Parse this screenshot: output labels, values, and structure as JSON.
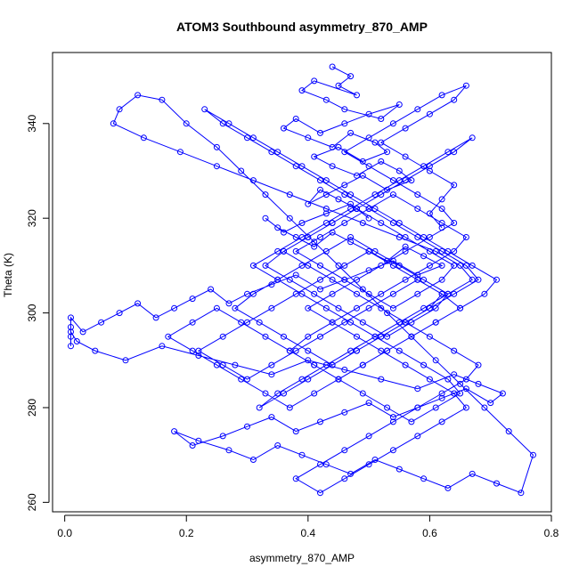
{
  "chart_data": {
    "type": "line",
    "title": "ATOM3 Southbound asymmetry_870_AMP",
    "xlabel": "asymmetry_870_AMP",
    "ylabel": "Theta (K)",
    "xlim": [
      -0.02,
      0.8
    ],
    "ylim": [
      258,
      355
    ],
    "x_ticks": [
      0.0,
      0.2,
      0.4,
      0.6,
      0.8
    ],
    "x_tick_labels": [
      "0.0",
      "0.2",
      "0.4",
      "0.6",
      "0.8"
    ],
    "y_ticks": [
      260,
      280,
      300,
      320,
      340
    ],
    "y_tick_labels": [
      "260",
      "280",
      "300",
      "320",
      "340"
    ],
    "grid": false,
    "legend": "none",
    "series": [
      {
        "style": "points and lines (open circles)",
        "color": "#0000ff",
        "x": [
          0.44,
          0.47,
          0.45,
          0.48,
          0.41,
          0.39,
          0.43,
          0.46,
          0.52,
          0.55,
          0.5,
          0.46,
          0.42,
          0.38,
          0.36,
          0.4,
          0.44,
          0.47,
          0.51,
          0.53,
          0.49,
          0.45,
          0.41,
          0.44,
          0.48,
          0.52,
          0.55,
          0.57,
          0.53,
          0.49,
          0.46,
          0.43,
          0.4,
          0.42,
          0.45,
          0.48,
          0.5,
          0.47,
          0.43,
          0.39,
          0.36,
          0.33,
          0.35,
          0.38,
          0.41,
          0.44,
          0.47,
          0.5,
          0.53,
          0.56,
          0.59,
          0.62,
          0.58,
          0.54,
          0.5,
          0.46,
          0.42,
          0.38,
          0.34,
          0.3,
          0.27,
          0.24,
          0.21,
          0.18,
          0.15,
          0.12,
          0.09,
          0.06,
          0.03,
          0.01,
          0.01,
          0.01,
          0.01,
          0.01,
          0.02,
          0.05,
          0.1,
          0.16,
          0.22,
          0.28,
          0.34,
          0.4,
          0.46,
          0.52,
          0.58,
          0.64,
          0.68,
          0.72,
          0.7,
          0.66,
          0.62,
          0.58,
          0.54,
          0.5,
          0.46,
          0.42,
          0.38,
          0.34,
          0.3,
          0.26,
          0.21,
          0.18,
          0.22,
          0.27,
          0.31,
          0.35,
          0.39,
          0.43,
          0.47,
          0.51,
          0.55,
          0.59,
          0.63,
          0.67,
          0.71,
          0.75,
          0.77,
          0.73,
          0.69,
          0.65,
          0.61,
          0.57,
          0.53,
          0.49,
          0.45,
          0.41,
          0.37,
          0.33,
          0.29,
          0.25,
          0.2,
          0.16,
          0.12,
          0.09,
          0.08,
          0.13,
          0.19,
          0.25,
          0.31,
          0.37,
          0.43,
          0.49,
          0.55,
          0.61,
          0.65,
          0.67,
          0.63,
          0.59,
          0.55,
          0.51,
          0.47,
          0.43,
          0.39,
          0.35,
          0.32,
          0.36,
          0.4,
          0.44,
          0.48,
          0.52,
          0.56,
          0.6,
          0.64,
          0.68,
          0.66,
          0.62,
          0.58,
          0.54,
          0.5,
          0.46,
          0.42,
          0.38,
          0.34,
          0.3,
          0.26,
          0.23,
          0.27,
          0.31,
          0.35,
          0.39,
          0.43,
          0.47,
          0.51,
          0.55,
          0.59,
          0.63,
          0.67,
          0.71,
          0.69,
          0.65,
          0.61,
          0.57,
          0.53,
          0.49,
          0.45,
          0.41,
          0.37,
          0.4,
          0.44,
          0.48,
          0.52,
          0.56,
          0.6,
          0.64,
          0.66,
          0.62,
          0.58,
          0.54,
          0.5,
          0.46,
          0.42,
          0.38,
          0.42,
          0.46,
          0.5,
          0.54,
          0.58,
          0.62,
          0.64,
          0.6,
          0.56,
          0.52,
          0.48,
          0.44,
          0.4,
          0.36,
          0.33,
          0.37,
          0.41,
          0.45,
          0.49,
          0.53,
          0.57,
          0.61,
          0.63,
          0.59,
          0.55,
          0.51,
          0.47,
          0.43,
          0.39,
          0.35,
          0.31,
          0.28,
          0.32,
          0.36,
          0.4,
          0.44,
          0.48,
          0.52,
          0.56,
          0.6,
          0.62,
          0.58,
          0.54,
          0.5,
          0.46,
          0.42,
          0.38,
          0.34,
          0.3,
          0.26,
          0.22,
          0.26,
          0.3,
          0.34,
          0.38,
          0.42,
          0.46,
          0.5,
          0.54,
          0.58,
          0.62,
          0.65,
          0.61,
          0.57,
          0.53,
          0.49,
          0.45,
          0.41,
          0.37,
          0.33,
          0.29,
          0.25,
          0.21,
          0.17,
          0.21,
          0.25,
          0.29,
          0.33,
          0.37,
          0.41,
          0.45,
          0.49,
          0.53,
          0.57,
          0.61,
          0.65,
          0.63,
          0.59,
          0.55,
          0.51,
          0.47,
          0.43,
          0.39,
          0.35,
          0.31,
          0.35,
          0.39,
          0.43,
          0.47,
          0.51,
          0.55,
          0.59,
          0.63,
          0.67,
          0.64,
          0.6,
          0.56,
          0.52,
          0.48,
          0.44,
          0.4,
          0.36,
          0.4,
          0.44,
          0.48,
          0.52,
          0.56,
          0.6,
          0.64,
          0.68,
          0.66,
          0.62,
          0.58,
          0.54,
          0.5,
          0.46,
          0.42,
          0.38,
          0.42,
          0.46,
          0.5,
          0.54,
          0.58,
          0.62,
          0.66,
          0.64,
          0.6,
          0.56,
          0.52,
          0.48,
          0.44,
          0.4,
          0.44,
          0.48,
          0.52,
          0.56,
          0.6,
          0.64,
          0.62,
          0.58,
          0.54,
          0.5,
          0.46,
          0.5,
          0.54,
          0.58,
          0.62,
          0.66,
          0.64,
          0.6,
          0.56,
          0.52,
          0.56,
          0.6,
          0.64,
          0.62,
          0.6,
          0.62
        ],
        "y": [
          352,
          350,
          348,
          346,
          349,
          347,
          345,
          343,
          341,
          344,
          342,
          340,
          338,
          341,
          339,
          337,
          335,
          338,
          336,
          334,
          332,
          335,
          333,
          331,
          329,
          332,
          330,
          328,
          326,
          329,
          327,
          325,
          323,
          326,
          324,
          322,
          320,
          323,
          321,
          319,
          317,
          320,
          318,
          316,
          314,
          317,
          315,
          313,
          311,
          314,
          312,
          310,
          308,
          311,
          309,
          307,
          305,
          308,
          306,
          304,
          302,
          305,
          303,
          301,
          299,
          302,
          300,
          298,
          296,
          299,
          297,
          295,
          293,
          296,
          294,
          292,
          290,
          293,
          291,
          289,
          287,
          290,
          288,
          286,
          284,
          287,
          285,
          283,
          281,
          284,
          282,
          280,
          278,
          281,
          279,
          277,
          275,
          278,
          276,
          274,
          272,
          275,
          273,
          271,
          269,
          272,
          270,
          268,
          266,
          269,
          267,
          265,
          263,
          266,
          264,
          262,
          270,
          275,
          280,
          285,
          290,
          295,
          300,
          305,
          310,
          315,
          320,
          325,
          330,
          335,
          340,
          345,
          346,
          343,
          340,
          337,
          334,
          331,
          328,
          325,
          322,
          319,
          316,
          313,
          310,
          307,
          304,
          301,
          298,
          295,
          292,
          289,
          286,
          283,
          280,
          283,
          286,
          289,
          292,
          295,
          298,
          301,
          304,
          307,
          310,
          313,
          316,
          319,
          322,
          325,
          328,
          331,
          334,
          337,
          340,
          343,
          340,
          337,
          334,
          331,
          328,
          325,
          322,
          319,
          316,
          313,
          310,
          307,
          304,
          301,
          298,
          295,
          292,
          289,
          286,
          289,
          292,
          295,
          298,
          301,
          304,
          307,
          310,
          313,
          316,
          319,
          322,
          325,
          322,
          319,
          316,
          313,
          310,
          307,
          304,
          301,
          304,
          307,
          310,
          313,
          316,
          319,
          322,
          319,
          316,
          313,
          310,
          307,
          304,
          301,
          298,
          295,
          298,
          301,
          304,
          307,
          310,
          313,
          316,
          313,
          310,
          307,
          304,
          301,
          298,
          295,
          292,
          289,
          292,
          295,
          298,
          301,
          304,
          307,
          310,
          313,
          310,
          307,
          304,
          301,
          298,
          295,
          292,
          289,
          286,
          289,
          292,
          295,
          298,
          301,
          304,
          307,
          304,
          301,
          298,
          295,
          292,
          289,
          286,
          283,
          280,
          283,
          286,
          289,
          292,
          295,
          298,
          301,
          298,
          295,
          292,
          289,
          286,
          283,
          280,
          277,
          280,
          283,
          286,
          289,
          292,
          295,
          298,
          301,
          304,
          307,
          310,
          313,
          316,
          319,
          322,
          325,
          328,
          331,
          334,
          337,
          334,
          331,
          328,
          325,
          322,
          319,
          316,
          313,
          310,
          307,
          304,
          301,
          298,
          295,
          292,
          289,
          286,
          283,
          280,
          277,
          274,
          271,
          268,
          265,
          262,
          265,
          268,
          271,
          274,
          277,
          280,
          283,
          286,
          289,
          292,
          295,
          298,
          301,
          304,
          307,
          310,
          313,
          316,
          319,
          322,
          325,
          328,
          331,
          334,
          337,
          340,
          343,
          346,
          348,
          345,
          342,
          339,
          336,
          333,
          330,
          327,
          324,
          321,
          318
        ]
      }
    ]
  }
}
